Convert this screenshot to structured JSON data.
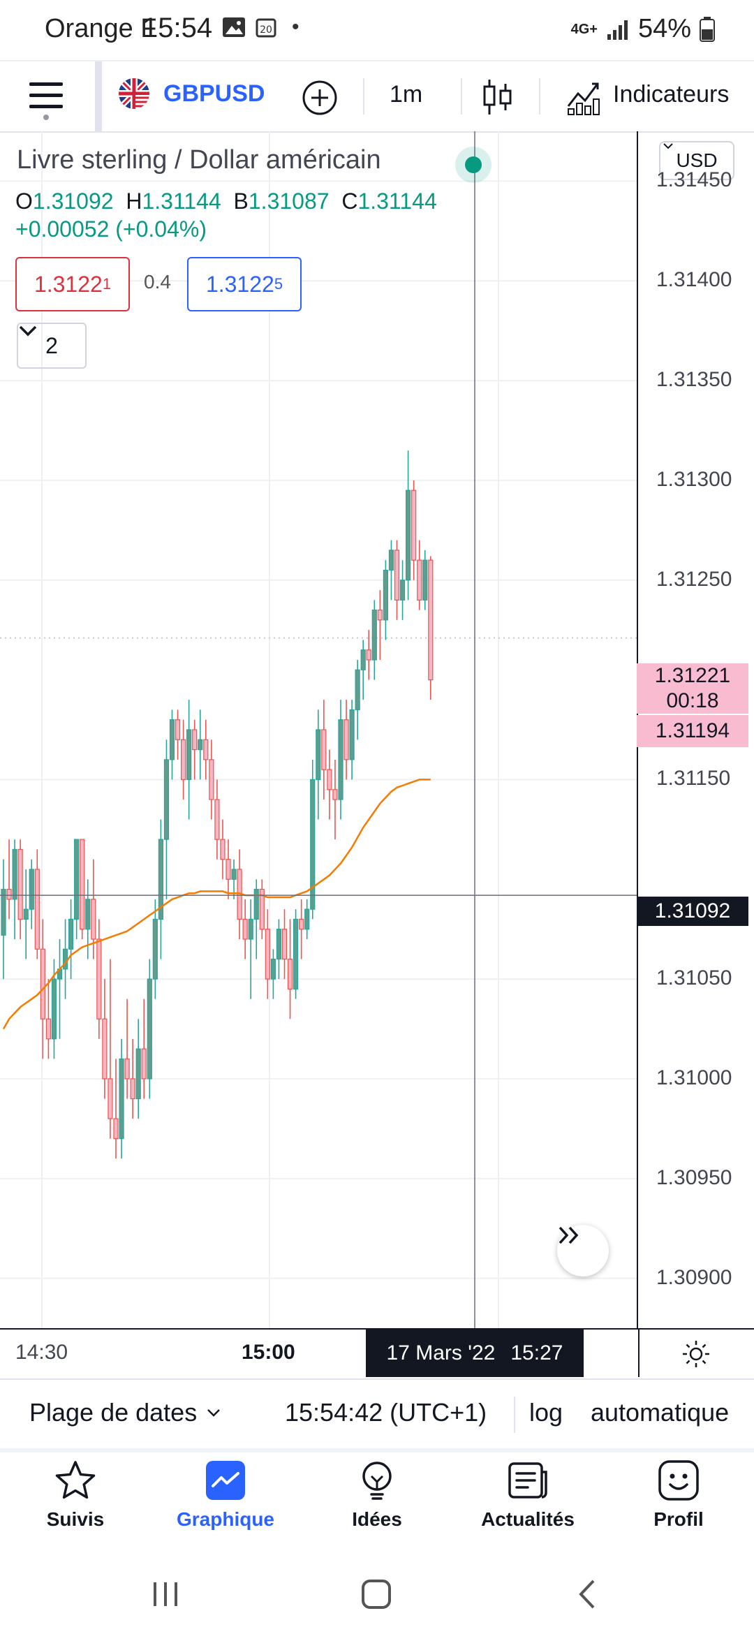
{
  "status_bar": {
    "carrier": "Orange F",
    "time": "15:54",
    "network": "4G+",
    "battery": "54%"
  },
  "toolbar": {
    "symbol": "GBPUSD",
    "interval": "1m",
    "indicators_label": "Indicateurs",
    "icons": [
      "menu-icon",
      "flag-gb-us-icon",
      "add-circle-icon",
      "candles-icon",
      "indicators-icon"
    ]
  },
  "legend": {
    "title": "Livre sterling / Dollar américain",
    "o_label": "O",
    "o_value": "1.31092",
    "h_label": "H",
    "h_value": "1.31144",
    "b_label": "B",
    "b_value": "1.31087",
    "c_label": "C",
    "c_value": "1.31144",
    "change": "+0.00052 (+0.04%)",
    "sell_price_main": "1.3122",
    "sell_price_sup": "1",
    "spread": "0.4",
    "buy_price_main": "1.3122",
    "buy_price_sup": "5",
    "collapse_count": "2",
    "currency": "USD"
  },
  "colors": {
    "up": "#26a69a",
    "up_fill": "#5f9e8f",
    "down": "#ef5350",
    "down_fill": "#f4b6c2",
    "ma": "#f57c00",
    "accent": "#2962ff",
    "crosshair_tag": "#131722",
    "price_tag": "#f8bbd0",
    "live_dot": "#089981"
  },
  "chart_data": {
    "type": "candlestick",
    "symbol": "GBPUSD",
    "interval": "1m",
    "ylim": [
      1.30875,
      1.31475
    ],
    "yticks": [
      "1.31450",
      "1.31400",
      "1.31350",
      "1.31300",
      "1.31250",
      "1.31150",
      "1.31050",
      "1.31000",
      "1.30950",
      "1.30900"
    ],
    "xticks": [
      "14:30",
      "15:00"
    ],
    "last_price": "1.31221",
    "countdown": "00:18",
    "bid_price": "1.31194",
    "crosshair_price": "1.31092",
    "crosshair_time": {
      "date": "17 Mars '22",
      "time": "15:27"
    },
    "ohlc": [
      [
        1.31072,
        1.3111,
        1.3105,
        1.31095
      ],
      [
        1.31095,
        1.3112,
        1.3108,
        1.3109
      ],
      [
        1.3109,
        1.3112,
        1.3107,
        1.31115
      ],
      [
        1.31115,
        1.3112,
        1.3107,
        1.3108
      ],
      [
        1.3108,
        1.31105,
        1.3106,
        1.31085
      ],
      [
        1.31085,
        1.3111,
        1.31075,
        1.31105
      ],
      [
        1.31105,
        1.31115,
        1.3106,
        1.31065
      ],
      [
        1.31065,
        1.3108,
        1.3101,
        1.3103
      ],
      [
        1.3103,
        1.3105,
        1.3101,
        1.3102
      ],
      [
        1.3102,
        1.3106,
        1.3101,
        1.3105
      ],
      [
        1.3105,
        1.3107,
        1.3102,
        1.31055
      ],
      [
        1.31055,
        1.3108,
        1.3104,
        1.31065
      ],
      [
        1.31065,
        1.3109,
        1.3105,
        1.3108
      ],
      [
        1.3108,
        1.3112,
        1.3107,
        1.3112
      ],
      [
        1.3112,
        1.3112,
        1.3107,
        1.31075
      ],
      [
        1.31075,
        1.311,
        1.3106,
        1.3109
      ],
      [
        1.3109,
        1.3111,
        1.3106,
        1.3107
      ],
      [
        1.3107,
        1.3108,
        1.3102,
        1.3103
      ],
      [
        1.3103,
        1.3105,
        1.3099,
        1.31
      ],
      [
        1.31,
        1.3106,
        1.3097,
        1.3098
      ],
      [
        1.3098,
        1.3101,
        1.3096,
        1.3097
      ],
      [
        1.3097,
        1.3102,
        1.3096,
        1.3101
      ],
      [
        1.3101,
        1.3104,
        1.3099,
        1.31
      ],
      [
        1.31,
        1.3102,
        1.3098,
        1.3099
      ],
      [
        1.3099,
        1.3103,
        1.3098,
        1.31015
      ],
      [
        1.31015,
        1.3104,
        1.3099,
        1.31
      ],
      [
        1.31,
        1.3106,
        1.3099,
        1.3105
      ],
      [
        1.3105,
        1.3109,
        1.3104,
        1.3108
      ],
      [
        1.3108,
        1.3113,
        1.3106,
        1.3112
      ],
      [
        1.3112,
        1.3117,
        1.3109,
        1.3116
      ],
      [
        1.3116,
        1.31185,
        1.3115,
        1.3118
      ],
      [
        1.3118,
        1.31185,
        1.3116,
        1.3117
      ],
      [
        1.3117,
        1.3118,
        1.3114,
        1.3115
      ],
      [
        1.3115,
        1.3119,
        1.3113,
        1.31175
      ],
      [
        1.31175,
        1.3118,
        1.3115,
        1.31165
      ],
      [
        1.31165,
        1.31185,
        1.3115,
        1.3117
      ],
      [
        1.3117,
        1.3118,
        1.3115,
        1.3116
      ],
      [
        1.3116,
        1.3117,
        1.3113,
        1.3114
      ],
      [
        1.3114,
        1.3115,
        1.3111,
        1.3112
      ],
      [
        1.3112,
        1.3113,
        1.311,
        1.3111
      ],
      [
        1.3111,
        1.3112,
        1.3109,
        1.311
      ],
      [
        1.311,
        1.3111,
        1.3109,
        1.31105
      ],
      [
        1.31105,
        1.31115,
        1.3107,
        1.3108
      ],
      [
        1.3108,
        1.3109,
        1.3106,
        1.3107
      ],
      [
        1.3107,
        1.3109,
        1.3104,
        1.3108
      ],
      [
        1.3108,
        1.311,
        1.3106,
        1.31095
      ],
      [
        1.31095,
        1.311,
        1.3107,
        1.31075
      ],
      [
        1.31075,
        1.31085,
        1.3104,
        1.3105
      ],
      [
        1.3105,
        1.31065,
        1.3104,
        1.3106
      ],
      [
        1.3106,
        1.3108,
        1.3105,
        1.31075
      ],
      [
        1.31075,
        1.31085,
        1.3105,
        1.3106
      ],
      [
        1.3106,
        1.3108,
        1.3103,
        1.31045
      ],
      [
        1.31045,
        1.31085,
        1.3104,
        1.3108
      ],
      [
        1.3108,
        1.3109,
        1.3106,
        1.31075
      ],
      [
        1.31075,
        1.3109,
        1.3107,
        1.31085
      ],
      [
        1.31085,
        1.3116,
        1.3108,
        1.3115
      ],
      [
        1.3115,
        1.31185,
        1.3113,
        1.31175
      ],
      [
        1.31175,
        1.3119,
        1.3114,
        1.31155
      ],
      [
        1.31155,
        1.31165,
        1.3113,
        1.31145
      ],
      [
        1.31145,
        1.3116,
        1.3112,
        1.3114
      ],
      [
        1.3114,
        1.3119,
        1.3113,
        1.3118
      ],
      [
        1.3118,
        1.3119,
        1.3115,
        1.3116
      ],
      [
        1.3116,
        1.3119,
        1.3115,
        1.31185
      ],
      [
        1.31185,
        1.3121,
        1.3117,
        1.31205
      ],
      [
        1.31205,
        1.3122,
        1.3119,
        1.31215
      ],
      [
        1.31215,
        1.31225,
        1.312,
        1.3121
      ],
      [
        1.3121,
        1.3124,
        1.312,
        1.31235
      ],
      [
        1.31235,
        1.31245,
        1.3121,
        1.3123
      ],
      [
        1.3123,
        1.3126,
        1.3122,
        1.31255
      ],
      [
        1.31255,
        1.3127,
        1.3124,
        1.31265
      ],
      [
        1.31265,
        1.3127,
        1.3123,
        1.3124
      ],
      [
        1.3124,
        1.3126,
        1.3123,
        1.3125
      ],
      [
        1.3125,
        1.31315,
        1.3124,
        1.31295
      ],
      [
        1.31295,
        1.313,
        1.3125,
        1.3126
      ],
      [
        1.3126,
        1.3127,
        1.31235,
        1.3124
      ],
      [
        1.3124,
        1.31265,
        1.31235,
        1.3126
      ],
      [
        1.3126,
        1.31262,
        1.3119,
        1.312
      ]
    ],
    "ma": [
      1.31025,
      1.3103,
      1.31033,
      1.31036,
      1.31038,
      1.3104,
      1.31042,
      1.31045,
      1.31048,
      1.31052,
      1.31055,
      1.31058,
      1.31062,
      1.31064,
      1.31066,
      1.31067,
      1.31068,
      1.31069,
      1.3107,
      1.31071,
      1.31072,
      1.31073,
      1.31074,
      1.31076,
      1.31078,
      1.3108,
      1.31082,
      1.31084,
      1.31086,
      1.31088,
      1.3109,
      1.31091,
      1.31092,
      1.31093,
      1.31093,
      1.31094,
      1.31094,
      1.31094,
      1.31094,
      1.31094,
      1.31093,
      1.31093,
      1.31093,
      1.31092,
      1.31092,
      1.31092,
      1.31092,
      1.31091,
      1.31091,
      1.31091,
      1.31091,
      1.31091,
      1.31092,
      1.31093,
      1.31094,
      1.31096,
      1.31098,
      1.311,
      1.31102,
      1.31105,
      1.31108,
      1.31112,
      1.31116,
      1.31121,
      1.31126,
      1.3113,
      1.31134,
      1.31138,
      1.31141,
      1.31144,
      1.31146,
      1.31147,
      1.31148,
      1.31149,
      1.3115,
      1.3115,
      1.3115
    ]
  },
  "time_axis": {
    "t1": "14:30",
    "t2": "15:00",
    "crosshair_date": "17 Mars '22",
    "crosshair_time": "15:27"
  },
  "bottom_bar": {
    "date_range": "Plage de dates",
    "clock": "15:54:42 (UTC+1)",
    "log": "log",
    "auto": "automatique"
  },
  "nav": {
    "items": [
      {
        "label": "Suivis",
        "icon": "star-icon"
      },
      {
        "label": "Graphique",
        "icon": "chart-icon"
      },
      {
        "label": "Idées",
        "icon": "bulb-icon"
      },
      {
        "label": "Actualités",
        "icon": "news-icon"
      },
      {
        "label": "Profil",
        "icon": "smiley-icon"
      }
    ]
  }
}
